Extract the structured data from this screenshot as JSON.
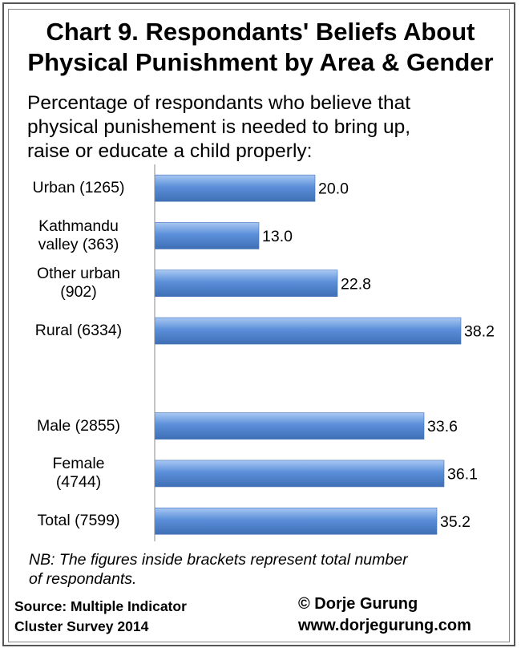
{
  "title_line1": "Chart 9. Respondants' Beliefs About",
  "title_line2": "Physical Punishment by Area & Gender",
  "subtitle_lines": [
    "Percentage of respondants who believe that",
    "physical punishement is needed to bring up,",
    "raise or educate a child properly:"
  ],
  "note_lines": [
    "NB: The figures inside brackets represent total number",
    "of respondants."
  ],
  "source_lines": [
    "Source: Multiple Indicator",
    "Cluster Survey 2014"
  ],
  "credit_lines": [
    "© Dorje Gurung",
    "www.dorjegurung.com"
  ],
  "colors": {
    "bar": "#5b8fd9",
    "bar_light": "#a9c8f3",
    "bar_edge": "#3f6fb5",
    "axis": "#888888"
  },
  "chart_data": {
    "type": "bar",
    "orientation": "horizontal",
    "categories": [
      [
        "Urban (1265)"
      ],
      [
        "Kathmandu",
        "valley (363)"
      ],
      [
        "Other urban",
        "(902)"
      ],
      [
        "Rural (6334)"
      ],
      [],
      [
        "Male (2855)"
      ],
      [
        "Female",
        "(4744)"
      ],
      [
        "Total (7599)"
      ]
    ],
    "values": [
      20.0,
      13.0,
      22.8,
      38.2,
      null,
      33.6,
      36.1,
      35.2
    ],
    "value_labels": [
      "20.0",
      "13.0",
      "22.8",
      "38.2",
      "",
      "33.6",
      "36.1",
      "35.2"
    ],
    "xlim": [
      0,
      58
    ],
    "grid": false,
    "legend": "none"
  }
}
